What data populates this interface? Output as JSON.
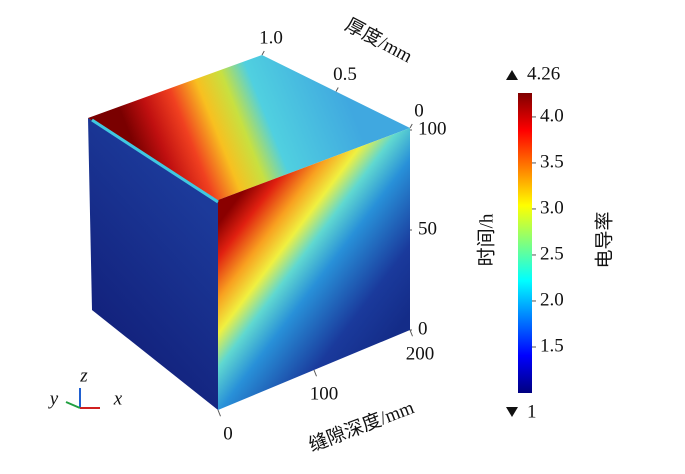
{
  "chart_data": {
    "type": "volume3d",
    "x_label": "缝隙深度/mm",
    "xlim": [
      0,
      200
    ],
    "xticks": [
      0,
      100,
      200
    ],
    "y_label": "厚度/mm",
    "ylim": [
      0,
      1
    ],
    "yticks": [
      0,
      0.5,
      {
        "value": 1,
        "label": "1.0"
      }
    ],
    "z_label": "时间/h",
    "zlim": [
      0,
      100
    ],
    "zticks": [
      0,
      50,
      100
    ],
    "colorbar_label": "电导率",
    "colormap": "jet",
    "clim": [
      1,
      4.26
    ],
    "cticks": [
      1.5,
      {
        "value": 2,
        "label": "2.0"
      },
      2.5,
      {
        "value": 3,
        "label": "3.0"
      },
      3.5,
      {
        "value": 4,
        "label": "4.0"
      }
    ],
    "axis_triad": [
      "y",
      "z",
      "x"
    ]
  }
}
